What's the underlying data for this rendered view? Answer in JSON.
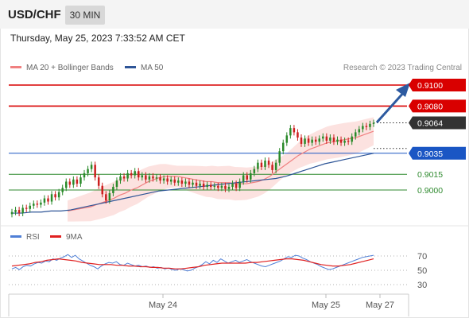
{
  "header": {
    "symbol": "USD/CHF",
    "timeframe": "30 MIN",
    "datetime": "Thursday, May 25, 2023 7:33:52 AM CET"
  },
  "legend": {
    "ma20_label": "MA 20 + Bollinger Bands",
    "ma50_label": "MA 50",
    "rsi_label": "RSI",
    "ma9_label": "9MA",
    "credit": "Research © 2023 Trading Central"
  },
  "colors": {
    "resistance": "#d90000",
    "support": "#1a56c4",
    "target": "#2f8a2f",
    "current": "#333333",
    "ma20": "#f08080",
    "ma50": "#2e5597",
    "band": "#fbd8d5",
    "up": "#2a8a2a",
    "down": "#cc1f1f",
    "rsi": "#4f7fd6",
    "ma9": "#e02020"
  },
  "chart_data": {
    "type": "candlestick",
    "pair": "USD/CHF",
    "interval": "30 MIN",
    "levels": [
      {
        "value": 0.91,
        "label": "0.9100",
        "kind": "resistance"
      },
      {
        "value": 0.908,
        "label": "0.9080",
        "kind": "resistance"
      },
      {
        "value": 0.9064,
        "label": "0.9064",
        "kind": "current"
      },
      {
        "value": 0.9035,
        "label": "0.9035",
        "kind": "support"
      },
      {
        "value": 0.9015,
        "label": "0.9015",
        "kind": "target"
      },
      {
        "value": 0.9,
        "label": "0.9000",
        "kind": "target"
      }
    ],
    "price_range": [
      0.8975,
      0.9105
    ],
    "x_ticks": [
      "May 24",
      "May 25",
      "May 27"
    ],
    "closes": [
      0.8979,
      0.8981,
      0.8978,
      0.8983,
      0.8982,
      0.8985,
      0.8987,
      0.8986,
      0.8988,
      0.8992,
      0.8989,
      0.8996,
      0.8993,
      0.8998,
      0.9002,
      0.9008,
      0.9005,
      0.901,
      0.9006,
      0.9012,
      0.9016,
      0.902,
      0.9024,
      0.9012,
      0.9004,
      0.8996,
      0.899,
      0.8997,
      0.9003,
      0.9009,
      0.9013,
      0.9011,
      0.9016,
      0.9014,
      0.9018,
      0.9012,
      0.9014,
      0.901,
      0.9013,
      0.9011,
      0.9012,
      0.9009,
      0.9011,
      0.9008,
      0.901,
      0.9007,
      0.9009,
      0.9006,
      0.9008,
      0.9005,
      0.9007,
      0.9004,
      0.9006,
      0.9003,
      0.9005,
      0.9003,
      0.9004,
      0.9002,
      0.9004,
      0.9001,
      0.9003,
      0.9006,
      0.9002,
      0.9008,
      0.9014,
      0.901,
      0.9016,
      0.902,
      0.9026,
      0.9022,
      0.9028,
      0.9024,
      0.9019,
      0.9026,
      0.9037,
      0.9045,
      0.9052,
      0.9059,
      0.9055,
      0.905,
      0.9044,
      0.9049,
      0.9045,
      0.9048,
      0.9046,
      0.9049,
      0.9051,
      0.9047,
      0.905,
      0.9046,
      0.9048,
      0.9045,
      0.9047,
      0.9046,
      0.9051,
      0.9055,
      0.9058,
      0.9061,
      0.906,
      0.9063,
      0.9064
    ],
    "ma20": [
      0.898,
      0.8981,
      0.8982,
      0.8983,
      0.8984,
      0.8986,
      0.8988,
      0.899,
      0.8992,
      0.8995,
      0.8997,
      0.9,
      0.9002,
      0.9005,
      0.9008,
      0.901,
      0.9012,
      0.9013,
      0.9013,
      0.9013,
      0.9012,
      0.9011,
      0.901,
      0.9009,
      0.9008,
      0.9008,
      0.9007,
      0.9007,
      0.9007,
      0.9006,
      0.9006,
      0.9006,
      0.9007,
      0.9008,
      0.901,
      0.9013,
      0.9017,
      0.9021,
      0.9025,
      0.9029,
      0.9033,
      0.9036,
      0.9039,
      0.9041,
      0.9043,
      0.9045,
      0.9046,
      0.9047,
      0.9048,
      0.9049,
      0.905,
      0.9052,
      0.9054,
      0.9056
    ],
    "ma50": [
      0.8978,
      0.8978,
      0.8979,
      0.8979,
      0.898,
      0.898,
      0.8981,
      0.8983,
      0.8985,
      0.8987,
      0.8989,
      0.8991,
      0.8993,
      0.8995,
      0.8997,
      0.8999,
      0.9,
      0.9001,
      0.9002,
      0.9003,
      0.9004,
      0.9005,
      0.9006,
      0.9007,
      0.9008,
      0.9009,
      0.901,
      0.9011,
      0.9013,
      0.9016,
      0.9019,
      0.9022,
      0.9025,
      0.9027,
      0.9029,
      0.9031,
      0.9033,
      0.9035
    ],
    "rsi": {
      "ticks": [
        70,
        50,
        30
      ],
      "range": [
        20,
        80
      ],
      "values": [
        52,
        54,
        51,
        55,
        57,
        56,
        59,
        61,
        60,
        63,
        62,
        66,
        64,
        67,
        69,
        72,
        68,
        71,
        66,
        63,
        60,
        57,
        55,
        52,
        56,
        59,
        61,
        60,
        62,
        58,
        57,
        60,
        58,
        56,
        57,
        55,
        56,
        54,
        55,
        53,
        54,
        52,
        53,
        51,
        50,
        52,
        51,
        49,
        50,
        53,
        55,
        58,
        62,
        59,
        64,
        61,
        66,
        63,
        60,
        62,
        64,
        61,
        63,
        65,
        62,
        60,
        58,
        56,
        55,
        57,
        59,
        61,
        63,
        66,
        69,
        68,
        71,
        70,
        67,
        65,
        62,
        60,
        58,
        55,
        53,
        51,
        52,
        54,
        56,
        58,
        60,
        62,
        64,
        66,
        68,
        69,
        70,
        71
      ],
      "ma9": [
        56,
        57,
        58,
        59,
        61,
        62,
        64,
        65,
        66,
        65,
        64,
        63,
        61,
        60,
        59,
        58,
        58,
        58,
        57,
        57,
        56,
        56,
        55,
        55,
        54,
        54,
        53,
        53,
        52,
        52,
        53,
        54,
        55,
        57,
        58,
        59,
        60,
        60,
        60,
        60,
        60,
        61,
        61,
        62,
        63,
        64,
        65,
        66,
        66,
        65,
        64,
        62,
        60,
        58,
        57,
        56,
        56,
        57,
        58,
        60,
        62,
        64,
        66
      ]
    }
  }
}
